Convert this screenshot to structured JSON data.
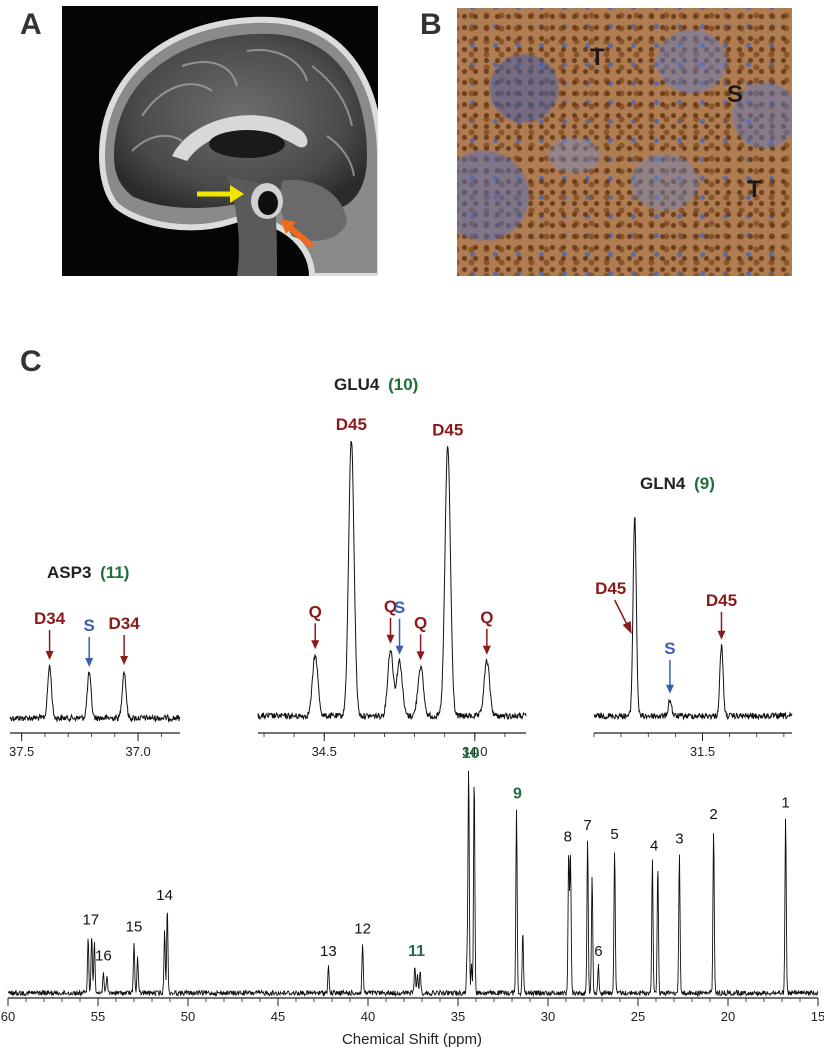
{
  "panels": {
    "a": {
      "label": "A"
    },
    "b": {
      "label": "B",
      "tissue_labels": [
        "T",
        "S",
        "T"
      ]
    },
    "c": {
      "label": "C"
    }
  },
  "colors": {
    "dark_red": "#8b1a1a",
    "blue": "#3a5fb0",
    "green": "#1f6e3c",
    "black": "#111111",
    "yellow_arrow": "#f2e600",
    "orange_arrow": "#f26a1b"
  },
  "chart_data": [
    {
      "type": "line",
      "panel": "C",
      "group": "ASP3",
      "group_number": "11",
      "xlim": [
        37.55,
        36.82
      ],
      "ticks": [
        37.5,
        37.0
      ],
      "tick_labels": [
        "37.5",
        "37.0"
      ],
      "peaks": [
        {
          "x": 37.38,
          "height": 0.52,
          "label": "D34",
          "label_color": "dark_red"
        },
        {
          "x": 37.21,
          "height": 0.45,
          "label": "S",
          "label_color": "blue"
        },
        {
          "x": 37.06,
          "height": 0.47,
          "label": "D34",
          "label_color": "dark_red"
        }
      ]
    },
    {
      "type": "line",
      "panel": "C",
      "group": "GLU4",
      "group_number": "10",
      "xlim": [
        34.72,
        33.83
      ],
      "ticks": [
        34.5,
        34.0
      ],
      "tick_labels": [
        "34.5",
        "34.0"
      ],
      "peaks": [
        {
          "x": 34.53,
          "height": 0.22,
          "label": "Q",
          "label_color": "dark_red"
        },
        {
          "x": 34.41,
          "height": 1.0,
          "label": "D45",
          "label_color": "dark_red"
        },
        {
          "x": 34.28,
          "height": 0.24,
          "label": "Q",
          "label_color": "dark_red"
        },
        {
          "x": 34.25,
          "height": 0.2,
          "label": "S",
          "label_color": "blue"
        },
        {
          "x": 34.18,
          "height": 0.18,
          "label": "Q",
          "label_color": "dark_red"
        },
        {
          "x": 34.09,
          "height": 0.98,
          "label": "D45",
          "label_color": "dark_red"
        },
        {
          "x": 33.96,
          "height": 0.2,
          "label": "Q",
          "label_color": "dark_red"
        }
      ]
    },
    {
      "type": "line",
      "panel": "C",
      "group": "GLN4",
      "group_number": "9",
      "xlim": [
        31.9,
        31.17
      ],
      "ticks": [
        31.5
      ],
      "tick_labels": [
        "31.5"
      ],
      "peaks": [
        {
          "x": 31.75,
          "height": 0.74,
          "label": "D45",
          "label_color": "dark_red"
        },
        {
          "x": 31.62,
          "height": 0.06,
          "label": "S",
          "label_color": "blue"
        },
        {
          "x": 31.43,
          "height": 0.26,
          "label": "D45",
          "label_color": "dark_red"
        }
      ]
    },
    {
      "type": "line",
      "panel": "C",
      "xlabel": "Chemical Shift (ppm)",
      "xlim": [
        60,
        15
      ],
      "ticks": [
        60,
        55,
        50,
        45,
        40,
        35,
        30,
        25,
        20,
        15
      ],
      "tick_labels": [
        "60",
        "55",
        "50",
        "45",
        "40",
        "35",
        "30",
        "25",
        "20",
        "15"
      ],
      "peak_labels": [
        {
          "label": "1",
          "x": 16.8,
          "height": 0.78,
          "color": "black"
        },
        {
          "label": "2",
          "x": 20.8,
          "height": 0.73,
          "color": "black"
        },
        {
          "label": "3",
          "x": 22.7,
          "height": 0.62,
          "color": "black"
        },
        {
          "label": "4",
          "x": 24.1,
          "height": 0.59,
          "color": "black"
        },
        {
          "label": "5",
          "x": 26.3,
          "height": 0.64,
          "color": "black"
        },
        {
          "label": "6",
          "x": 27.2,
          "height": 0.12,
          "color": "black"
        },
        {
          "label": "7",
          "x": 27.8,
          "height": 0.68,
          "color": "black"
        },
        {
          "label": "8",
          "x": 28.9,
          "height": 0.63,
          "color": "black"
        },
        {
          "label": "9",
          "x": 31.7,
          "height": 0.82,
          "color": "green"
        },
        {
          "label": "10",
          "x": 34.3,
          "height": 1.0,
          "color": "green"
        },
        {
          "label": "11",
          "x": 37.3,
          "height": 0.12,
          "color": "green"
        },
        {
          "label": "12",
          "x": 40.3,
          "height": 0.22,
          "color": "black"
        },
        {
          "label": "13",
          "x": 42.2,
          "height": 0.12,
          "color": "black"
        },
        {
          "label": "14",
          "x": 51.3,
          "height": 0.37,
          "color": "black"
        },
        {
          "label": "15",
          "x": 53.0,
          "height": 0.23,
          "color": "black"
        },
        {
          "label": "16",
          "x": 54.7,
          "height": 0.1,
          "color": "black"
        },
        {
          "label": "17",
          "x": 55.4,
          "height": 0.26,
          "color": "black"
        }
      ],
      "peaks": [
        {
          "x": 16.8,
          "height": 0.78
        },
        {
          "x": 20.8,
          "height": 0.73
        },
        {
          "x": 22.7,
          "height": 0.62
        },
        {
          "x": 23.9,
          "height": 0.57
        },
        {
          "x": 24.2,
          "height": 0.59
        },
        {
          "x": 26.3,
          "height": 0.64
        },
        {
          "x": 27.2,
          "height": 0.12
        },
        {
          "x": 27.55,
          "height": 0.53
        },
        {
          "x": 27.8,
          "height": 0.68
        },
        {
          "x": 28.85,
          "height": 0.63
        },
        {
          "x": 28.75,
          "height": 0.61
        },
        {
          "x": 31.4,
          "height": 0.28
        },
        {
          "x": 31.75,
          "height": 0.82
        },
        {
          "x": 34.1,
          "height": 0.97
        },
        {
          "x": 34.41,
          "height": 1.0
        },
        {
          "x": 34.5,
          "height": 0.15
        },
        {
          "x": 34.25,
          "height": 0.12
        },
        {
          "x": 37.1,
          "height": 0.1
        },
        {
          "x": 37.25,
          "height": 0.09
        },
        {
          "x": 37.4,
          "height": 0.12
        },
        {
          "x": 40.3,
          "height": 0.22
        },
        {
          "x": 42.2,
          "height": 0.12
        },
        {
          "x": 51.15,
          "height": 0.37
        },
        {
          "x": 51.3,
          "height": 0.28
        },
        {
          "x": 52.8,
          "height": 0.16
        },
        {
          "x": 53.0,
          "height": 0.23
        },
        {
          "x": 54.5,
          "height": 0.07
        },
        {
          "x": 54.7,
          "height": 0.1
        },
        {
          "x": 55.2,
          "height": 0.24
        },
        {
          "x": 55.35,
          "height": 0.26
        },
        {
          "x": 55.55,
          "height": 0.25
        }
      ]
    }
  ],
  "titles": {
    "glu4": {
      "name": "GLU4",
      "num": "(10)"
    },
    "asp3": {
      "name": "ASP3",
      "num": "(11)"
    },
    "gln4": {
      "name": "GLN4",
      "num": "(9)"
    }
  }
}
